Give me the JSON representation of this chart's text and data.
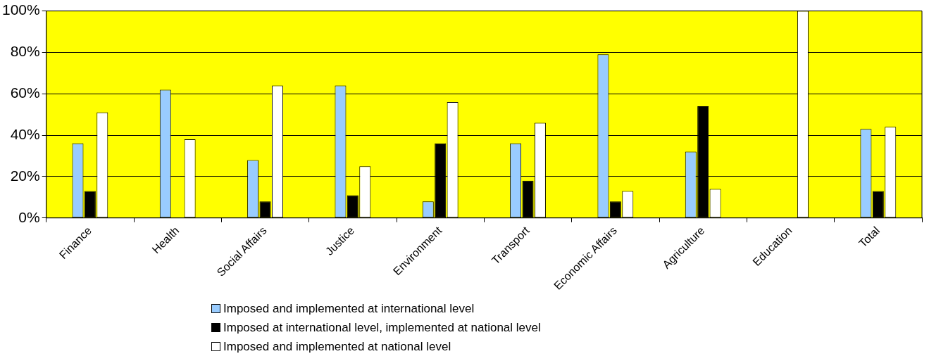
{
  "chart_data": {
    "type": "bar",
    "categories": [
      "Finance",
      "Health",
      "Social Affairs",
      "Justice",
      "Environment",
      "Transport",
      "Economic Affairs",
      "Agriculture",
      "Education",
      "Total"
    ],
    "series": [
      {
        "name": "Imposed and implemented at international level",
        "color": "#99ccff",
        "values": [
          36,
          62,
          28,
          64,
          8,
          36,
          79,
          32,
          0,
          43
        ]
      },
      {
        "name": "Imposed at international level, implemented at national level",
        "color": "#000000",
        "values": [
          13,
          0,
          8,
          11,
          36,
          18,
          8,
          54,
          0,
          13
        ]
      },
      {
        "name": "Imposed and implemented at national level",
        "color": "#ffffff",
        "values": [
          51,
          38,
          64,
          25,
          56,
          46,
          13,
          14,
          100,
          44
        ]
      }
    ],
    "ylim": [
      0,
      100
    ],
    "yticks": [
      {
        "value": 0,
        "label": "0%"
      },
      {
        "value": 20,
        "label": "20%"
      },
      {
        "value": 40,
        "label": "40%"
      },
      {
        "value": 60,
        "label": "60%"
      },
      {
        "value": 80,
        "label": "80%"
      },
      {
        "value": 100,
        "label": "100%"
      }
    ],
    "grid": "y",
    "legend": "bottom"
  }
}
